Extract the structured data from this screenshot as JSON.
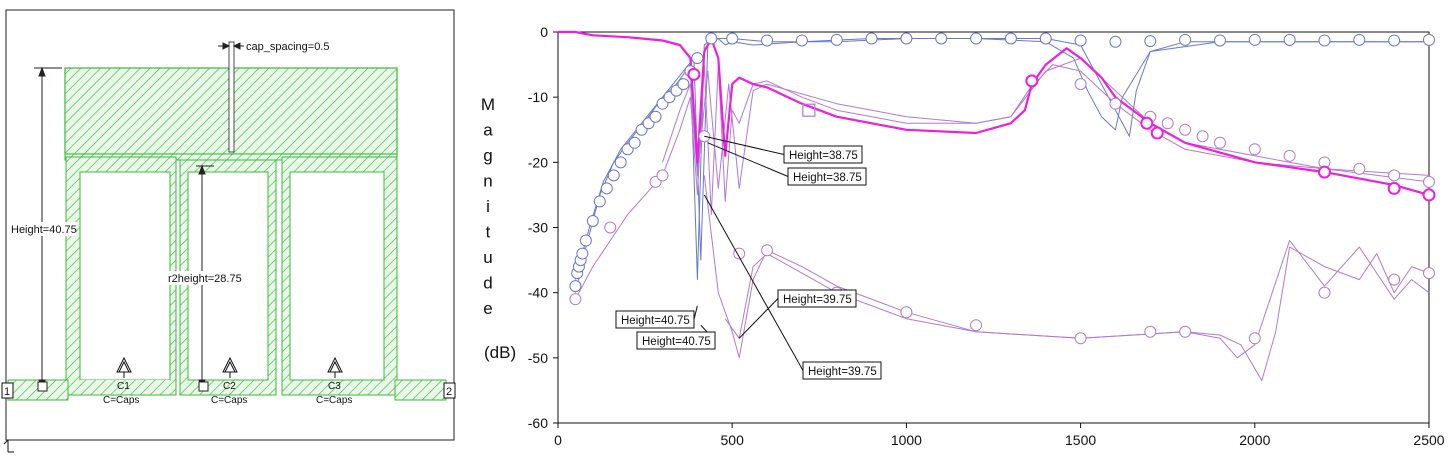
{
  "layout_panel": {
    "cap_spacing_label": "cap_spacing=0.5",
    "height_label": "Height=40.75",
    "r2height_label": "r2height=28.75",
    "port_labels": [
      "1",
      "2"
    ],
    "caps": [
      {
        "name": "C1",
        "value": "C=Caps"
      },
      {
        "name": "C2",
        "value": "C=Caps"
      },
      {
        "name": "C3",
        "value": "C=Caps"
      }
    ],
    "colors": {
      "hatch": "#3cb83c",
      "fill": "#e9f7e9"
    }
  },
  "chart_data": {
    "type": "line",
    "ylabel_letters": [
      "M",
      "a",
      "g",
      "n",
      "i",
      "t",
      "u",
      "d",
      "e"
    ],
    "ylabel_unit": "(dB)",
    "xlim": [
      0,
      2500
    ],
    "ylim": [
      -60,
      0
    ],
    "xticks": [
      0,
      500,
      1000,
      1500,
      2000,
      2500
    ],
    "yticks": [
      0,
      -10,
      -20,
      -30,
      -40,
      -50,
      -60
    ],
    "grid": false,
    "colors": {
      "blue": "#6a78c8",
      "violet": "#b07ad4",
      "magenta": "#ee1fdc"
    },
    "series": [
      {
        "color": "blue",
        "x": [
          50,
          80,
          120,
          160,
          200,
          260,
          300,
          340,
          380,
          400,
          420,
          440,
          460,
          480,
          500,
          560,
          700,
          900,
          1100,
          1300,
          1400,
          1500,
          1560,
          1600,
          1640,
          1660,
          1700,
          1800,
          2000,
          2200,
          2500
        ],
        "y": [
          -40,
          -33,
          -25,
          -20,
          -17,
          -13,
          -10,
          -8,
          -5,
          -38,
          -2,
          -1,
          -1,
          -2,
          -1.5,
          -2,
          -1.5,
          -1,
          -1,
          -1,
          -1,
          -2,
          -8,
          -12,
          -16,
          -9,
          -3,
          -1.5,
          -1.5,
          -1.5,
          -1.5
        ]
      },
      {
        "color": "blue",
        "x": [
          50,
          90,
          130,
          180,
          240,
          300,
          360,
          390,
          410,
          430,
          460,
          500,
          600,
          800,
          1000,
          1200,
          1400,
          1480,
          1520,
          1560,
          1600,
          1620,
          1700,
          1900,
          2100,
          2500
        ],
        "y": [
          -38,
          -30,
          -23,
          -18,
          -14,
          -10,
          -6,
          -4,
          -35,
          -2,
          -1,
          -1,
          -1.5,
          -1.5,
          -1,
          -1,
          -1.5,
          -4,
          -9,
          -13,
          -15,
          -10,
          -3,
          -1.5,
          -1.5,
          -1.5
        ]
      },
      {
        "color": "violet",
        "x": [
          50,
          100,
          200,
          300,
          350,
          380,
          400,
          420,
          440,
          460,
          480,
          500,
          520,
          560,
          600,
          700,
          800,
          1000,
          1200,
          1300,
          1400,
          1500,
          1600,
          1700,
          1800,
          2000,
          2200,
          2500
        ],
        "y": [
          -41,
          -36,
          -28,
          -22,
          -15,
          -10,
          -25,
          -5,
          -28,
          -5,
          -26,
          -12,
          -14,
          -8,
          -7.5,
          -10,
          -12,
          -14,
          -14,
          -13,
          -6,
          -4,
          -9,
          -14,
          -17,
          -19,
          -21,
          -22
        ]
      },
      {
        "color": "violet",
        "x": [
          300,
          350,
          380,
          400,
          430,
          460,
          490,
          520,
          560,
          600,
          800,
          1000,
          1200,
          1300,
          1350,
          1420,
          1500,
          1600,
          1700,
          1800,
          2000,
          2200,
          2500
        ],
        "y": [
          -20,
          -12,
          -8,
          -22,
          -6,
          -24,
          -8,
          -24,
          -9,
          -8,
          -11,
          -13,
          -14,
          -13,
          -9,
          -5,
          -6,
          -11,
          -15,
          -18,
          -20,
          -21,
          -23
        ]
      },
      {
        "color": "violet",
        "x": [
          420,
          460,
          500,
          520,
          560,
          600,
          700,
          800,
          1000,
          1200,
          1500,
          1800,
          1900,
          1960,
          2020,
          2060,
          2100,
          2200,
          2300,
          2350,
          2400,
          2450,
          2500
        ],
        "y": [
          -22,
          -40,
          -46,
          -50,
          -38,
          -33.5,
          -36,
          -39,
          -43,
          -46,
          -47,
          -46,
          -46.5,
          -48,
          -53.5,
          -46,
          -33,
          -36,
          -38,
          -34,
          -40,
          -36,
          -37
        ]
      },
      {
        "color": "violet",
        "x": [
          480,
          520,
          560,
          600,
          700,
          800,
          1000,
          1200,
          1500,
          1800,
          1900,
          1950,
          2000,
          2050,
          2100,
          2200,
          2300,
          2350,
          2400,
          2450,
          2500
        ],
        "y": [
          -44,
          -47,
          -36,
          -34,
          -37,
          -40,
          -44,
          -46,
          -47,
          -46,
          -47,
          -50,
          -48,
          -40,
          -32,
          -39,
          -33,
          -37,
          -41,
          -38,
          -40
        ]
      },
      {
        "color": "magenta",
        "width": 2.2,
        "x": [
          0,
          50,
          100,
          200,
          300,
          350,
          380,
          400,
          420,
          440,
          460,
          480,
          500,
          520,
          560,
          600,
          700,
          800,
          1000,
          1200,
          1300,
          1340,
          1360,
          1400,
          1460,
          1500,
          1560,
          1600,
          1700,
          1800,
          2000,
          2200,
          2400,
          2500
        ],
        "y": [
          0,
          0,
          -0.5,
          -0.8,
          -1.3,
          -2,
          -4,
          -20,
          -3,
          -1,
          -4,
          -19,
          -8,
          -7,
          -8,
          -8.5,
          -11,
          -13,
          -15,
          -15.5,
          -14,
          -12,
          -8,
          -5,
          -2.5,
          -4,
          -7,
          -10,
          -14,
          -17,
          -20,
          -21.5,
          -23.5,
          -25
        ]
      }
    ],
    "markers": [
      {
        "color": "blue",
        "x": [
          50,
          55,
          60,
          65,
          70,
          80,
          100,
          120,
          140,
          160,
          180,
          200,
          220,
          240,
          260,
          280,
          300,
          320,
          340,
          360,
          380,
          400,
          440,
          500,
          600,
          700,
          800,
          900,
          1000,
          1100,
          1200,
          1300,
          1400,
          1500,
          1600,
          1700,
          1800,
          1900,
          2000,
          2100,
          2200,
          2300,
          2400,
          2500
        ],
        "y": [
          -39,
          -37,
          -36,
          -35,
          -34,
          -32,
          -29,
          -26,
          -24,
          -22,
          -20,
          -18,
          -17,
          -15,
          -14,
          -13,
          -11,
          -10,
          -9,
          -8,
          -6,
          -4,
          -1,
          -1,
          -1.3,
          -1.3,
          -1.2,
          -1,
          -1,
          -1,
          -1,
          -1,
          -1,
          -1.3,
          -1.5,
          -1.4,
          -1.2,
          -1.3,
          -1.2,
          -1.2,
          -1.3,
          -1.2,
          -1.3,
          -1.2
        ]
      },
      {
        "color": "violet",
        "x": [
          50,
          150,
          280,
          300,
          420,
          520,
          600,
          800,
          1000,
          1200,
          1500,
          1700,
          1800,
          2000,
          2200,
          2400,
          2500
        ],
        "y": [
          -41,
          -30,
          -23,
          -22,
          -16,
          -34,
          -33.5,
          -40,
          -43,
          -45,
          -47,
          -46,
          -46,
          -47,
          -40,
          -38,
          -37
        ]
      },
      {
        "color": "violet",
        "x": [
          1500,
          1600,
          1700,
          1750,
          1800,
          1850,
          1900,
          2000,
          2100,
          2200,
          2300,
          2400,
          2500
        ],
        "y": [
          -8,
          -11,
          -13,
          -14,
          -15,
          -16,
          -17,
          -18,
          -19,
          -20,
          -21,
          -22,
          -23
        ]
      },
      {
        "color": "magenta",
        "x": [
          390,
          1360,
          1690,
          1720,
          2200,
          2400,
          2500
        ],
        "y": [
          -6.5,
          -7.5,
          -14,
          -15.5,
          -21.5,
          -24,
          -25
        ]
      }
    ],
    "square_marker": {
      "x": 720,
      "y": -12
    },
    "annotations": [
      {
        "text": "Height=38.75",
        "target": {
          "x": 420,
          "y": -16
        }
      },
      {
        "text": "Height=38.75",
        "target": {
          "x": 430,
          "y": -17
        }
      },
      {
        "text": "Height=40.75",
        "target": {
          "x": 400,
          "y": -42
        }
      },
      {
        "text": "Height=40.75",
        "target": {
          "x": 410,
          "y": -45
        }
      },
      {
        "text": "Height=39.75",
        "target": {
          "x": 520,
          "y": -47
        }
      },
      {
        "text": "Height=39.75",
        "target": {
          "x": 420,
          "y": -25
        }
      }
    ]
  }
}
